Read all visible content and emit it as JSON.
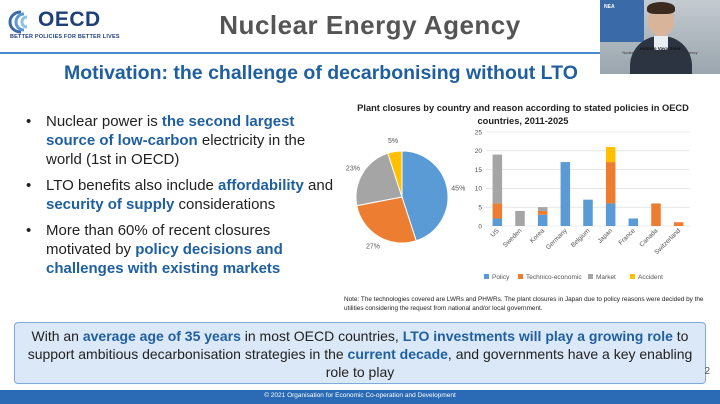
{
  "header": {
    "logo_text": "OECD",
    "logo_tagline": "BETTER POLICIES FOR BETTER LIVES",
    "agency_title": "Nuclear Energy Agency"
  },
  "video": {
    "badge": "NEA",
    "speaker_name": "Antonio Vaya Soler",
    "speaker_role": "Nuclear Energy Analyst, Nuclear Energy Agency"
  },
  "slide": {
    "title": "Motivation: the challenge of decarbonising without LTO",
    "page_number": "2"
  },
  "bullets": [
    {
      "parts": [
        [
          "Nuclear power is ",
          false
        ],
        [
          "the second largest source of low-carbon",
          true
        ],
        [
          " electricity in the world (1st in OECD)",
          false
        ]
      ]
    },
    {
      "parts": [
        [
          "LTO benefits also include ",
          false
        ],
        [
          "affordability",
          true
        ],
        [
          " and ",
          false
        ],
        [
          "security of supply",
          true
        ],
        [
          " considerations",
          false
        ]
      ]
    },
    {
      "parts": [
        [
          "More than 60% of recent closures motivated by ",
          false
        ],
        [
          "policy decisions and challenges with existing markets",
          true
        ]
      ]
    }
  ],
  "bullet_marker": "•",
  "chart_title": "Plant closures by country and reason according to stated policies in OECD countries, 2011-2025",
  "colors": {
    "policy": "#5b9bd5",
    "technico_economic": "#ed7d31",
    "market": "#a5a5a5",
    "accident": "#ffc000",
    "accent": "#1f5f9f",
    "footer": "#2b6bb5"
  },
  "chart_data": [
    {
      "type": "pie",
      "labels": [
        "Policy",
        "Technico-economic",
        "Market",
        "Accident"
      ],
      "values": [
        45,
        27,
        23,
        5
      ],
      "value_labels": [
        "45%",
        "27%",
        "23%",
        "5%"
      ],
      "title": ""
    },
    {
      "type": "bar",
      "stacked": true,
      "categories": [
        "US",
        "Sweden",
        "Korea",
        "Germany",
        "Belgium",
        "Japan",
        "France",
        "Canada",
        "Switzerland"
      ],
      "series": [
        {
          "name": "Policy",
          "values": [
            2,
            0,
            3,
            17,
            7,
            6,
            2,
            0,
            0
          ]
        },
        {
          "name": "Technico-economic",
          "values": [
            4,
            0,
            1,
            0,
            0,
            11,
            0,
            6,
            1
          ]
        },
        {
          "name": "Market",
          "values": [
            13,
            4,
            1,
            0,
            0,
            0,
            0,
            0,
            0
          ]
        },
        {
          "name": "Accident",
          "values": [
            0,
            0,
            0,
            0,
            0,
            4,
            0,
            0,
            0
          ]
        }
      ],
      "yticks": [
        "0",
        "5",
        "10",
        "15",
        "20",
        "25"
      ],
      "ylim": [
        0,
        25
      ],
      "grid": true,
      "legend": "bottom"
    }
  ],
  "chart_note": "Note: The technologies covered are LWRs and PHWRs. The plant closures in Japan due to policy reasons were decided by the utilities considering the request from national and/or local government.",
  "callout": {
    "parts": [
      [
        "With an ",
        false
      ],
      [
        "average age of 35 years",
        true
      ],
      [
        " in most OECD countries, ",
        false
      ],
      [
        "LTO investments will play a growing role",
        true
      ],
      [
        " to support ambitious decarbonisation strategies in the ",
        false
      ],
      [
        "current decade",
        true
      ],
      [
        ", and governments have a key enabling role to play",
        false
      ]
    ]
  },
  "footer_text": "© 2021 Organisation for Economic Co-operation and Development"
}
